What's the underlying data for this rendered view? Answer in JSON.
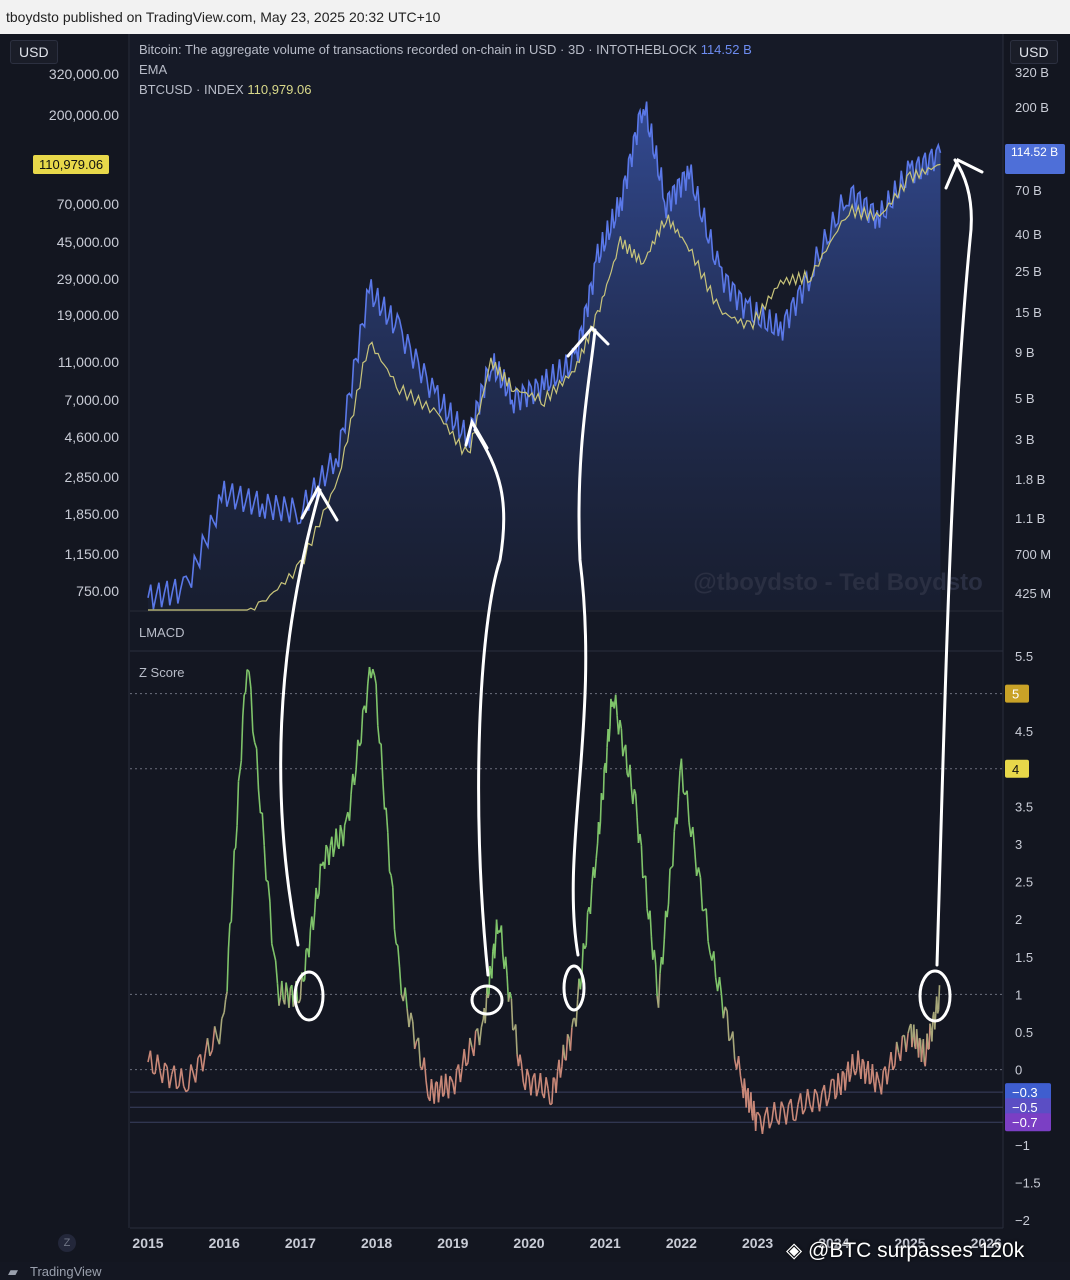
{
  "header": {
    "publisher_text": "tboydsto published on TradingView.com, May 23, 2025 20:32 UTC+10"
  },
  "toolbar": {
    "left_currency": "USD",
    "right_currency": "USD",
    "z_button": "Z"
  },
  "legend": {
    "line1_text": "Bitcoin: The aggregate volume of transactions recorded on-chain in USD · 3D · INTOTHEBLOCK",
    "line1_value": "114.52 B",
    "line2_text": "EMA",
    "line3_text": "BTCUSD · INDEX",
    "line3_value": "110,979.06"
  },
  "price_axis": {
    "ticks": [
      "320,000.00",
      "200,000.00",
      "70,000.00",
      "45,000.00",
      "29,000.00",
      "19,000.00",
      "11,000.00",
      "7,000.00",
      "4,600.00",
      "2,850.00",
      "1,850.00",
      "1,150.00",
      "750.00"
    ],
    "current_price_label": "110,979.06"
  },
  "volume_axis": {
    "ticks": [
      "320 B",
      "200 B",
      "70 B",
      "40 B",
      "25 B",
      "15 B",
      "9 B",
      "5 B",
      "3 B",
      "1.8 B",
      "1.1 B",
      "700 M",
      "425 M"
    ],
    "current_volume_label": "114.52 B"
  },
  "lmacd_pane": {
    "title": "LMACD"
  },
  "zscore_pane": {
    "title": "Z Score",
    "ticks": [
      "5.5",
      "4.5",
      "3.5",
      "3",
      "2.5",
      "2",
      "1.5",
      "1",
      "0.5",
      "0",
      "−1",
      "−1.5",
      "−2"
    ],
    "badges": [
      {
        "label": "5",
        "color": "#c9a227"
      },
      {
        "label": "4",
        "color": "#e8d84a"
      },
      {
        "label": "−0.3",
        "color": "#3f5ecf"
      },
      {
        "label": "−0.5",
        "color": "#5b4ec4"
      },
      {
        "label": "−0.7",
        "color": "#7b3fc4"
      }
    ]
  },
  "time_axis": {
    "labels": [
      "2015",
      "2016",
      "2017",
      "2018",
      "2019",
      "2020",
      "2021",
      "2022",
      "2023",
      "2024",
      "2025",
      "2026"
    ]
  },
  "watermark": "@tboydsto - Ted Boydsto",
  "footer": {
    "caption": "@BTC surpasses 120k",
    "branding": "TradingView"
  },
  "colors": {
    "background": "#131620",
    "volume_line": "#5a78e8",
    "price_line": "#c8c47a",
    "zscore_high": "#7fc46a",
    "zscore_low": "#c98878",
    "annotation": "#ffffff"
  },
  "chart_data": [
    {
      "type": "area",
      "title": "Bitcoin: The aggregate volume of transactions recorded on-chain in USD · 3D · INTOTHEBLOCK",
      "x": [
        "2015",
        "2015.5",
        "2016",
        "2016.5",
        "2017",
        "2017.5",
        "2017.9",
        "2018.3",
        "2018.8",
        "2019.2",
        "2019.5",
        "2019.8",
        "2020.2",
        "2020.6",
        "2020.9",
        "2021.2",
        "2021.5",
        "2021.8",
        "2022.1",
        "2022.5",
        "2022.9",
        "2023.3",
        "2023.7",
        "2024.2",
        "2024.6",
        "2025",
        "2025.4"
      ],
      "series": [
        {
          "name": "Bitcoin: The aggregate volume of transactions recorded on-chain in USD",
          "values_billions": [
            0.4,
            0.45,
            1.5,
            1.3,
            1.2,
            2.5,
            20,
            12,
            5,
            3,
            8,
            5,
            6,
            8,
            30,
            60,
            220,
            60,
            90,
            25,
            15,
            12,
            25,
            70,
            50,
            90,
            114.52
          ]
        },
        {
          "name": "BTCUSD · INDEX",
          "values": [
            300,
            250,
            430,
            650,
            1000,
            2800,
            14000,
            8000,
            6000,
            3600,
            11000,
            8000,
            7000,
            10000,
            19000,
            45000,
            35000,
            60000,
            42000,
            20000,
            16500,
            28000,
            30000,
            65000,
            60000,
            95000,
            110979.06
          ]
        }
      ],
      "ylabel": "USD"
    },
    {
      "type": "line",
      "title": "Z Score",
      "x": [
        "2015",
        "2015.5",
        "2016",
        "2016.3",
        "2016.7",
        "2017",
        "2017.3",
        "2017.6",
        "2017.95",
        "2018.3",
        "2018.7",
        "2019",
        "2019.4",
        "2019.6",
        "2019.9",
        "2020.3",
        "2020.6",
        "2020.9",
        "2021.1",
        "2021.4",
        "2021.7",
        "2022",
        "2022.4",
        "2022.8",
        "2023",
        "2023.5",
        "2024",
        "2024.3",
        "2024.6",
        "2025",
        "2025.2",
        "2025.4"
      ],
      "values": [
        0.1,
        -0.2,
        0.6,
        5.5,
        1.0,
        1.0,
        2.8,
        3.2,
        5.5,
        1.2,
        -0.3,
        -0.2,
        0.6,
        2.0,
        -0.1,
        -0.3,
        0.6,
        3.0,
        5.0,
        3.5,
        1.0,
        4.0,
        1.5,
        -0.2,
        -0.7,
        -0.5,
        -0.3,
        0.1,
        -0.2,
        0.5,
        0.2,
        1.0
      ],
      "ylim": [
        -2,
        5.5
      ]
    }
  ]
}
